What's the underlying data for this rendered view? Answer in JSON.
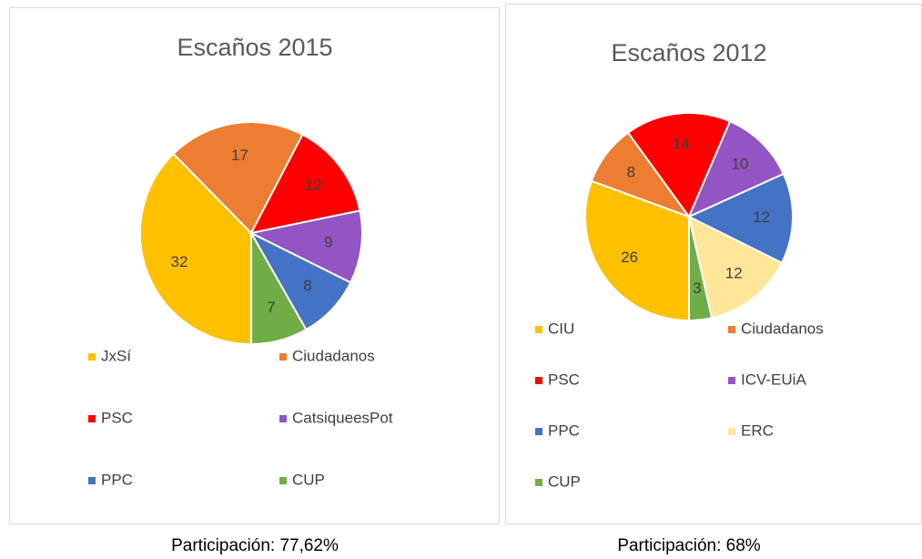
{
  "chart_data": [
    {
      "type": "pie",
      "title": "Escaños 2015",
      "categories": [
        "JxSí",
        "Ciudadanos",
        "PSC",
        "CatsiqueesPot",
        "PPC",
        "CUP"
      ],
      "values": [
        32,
        17,
        12,
        9,
        8,
        7
      ],
      "colors": [
        "#ffc000",
        "#ed7d31",
        "#ff0000",
        "#9255c3",
        "#4472c4",
        "#70ad47"
      ],
      "caption": "Participación: 77,62%"
    },
    {
      "type": "pie",
      "title": "Escaños 2012",
      "categories": [
        "CIU",
        "Ciudadanos",
        "PSC",
        "ICV-EUiA",
        "PPC",
        "ERC",
        "CUP"
      ],
      "values": [
        26,
        8,
        14,
        10,
        12,
        12,
        3
      ],
      "colors": [
        "#ffc000",
        "#ed7d31",
        "#ff0000",
        "#9255c3",
        "#4472c4",
        "#ffe699",
        "#70ad47"
      ],
      "caption": "Participación: 68%"
    }
  ]
}
